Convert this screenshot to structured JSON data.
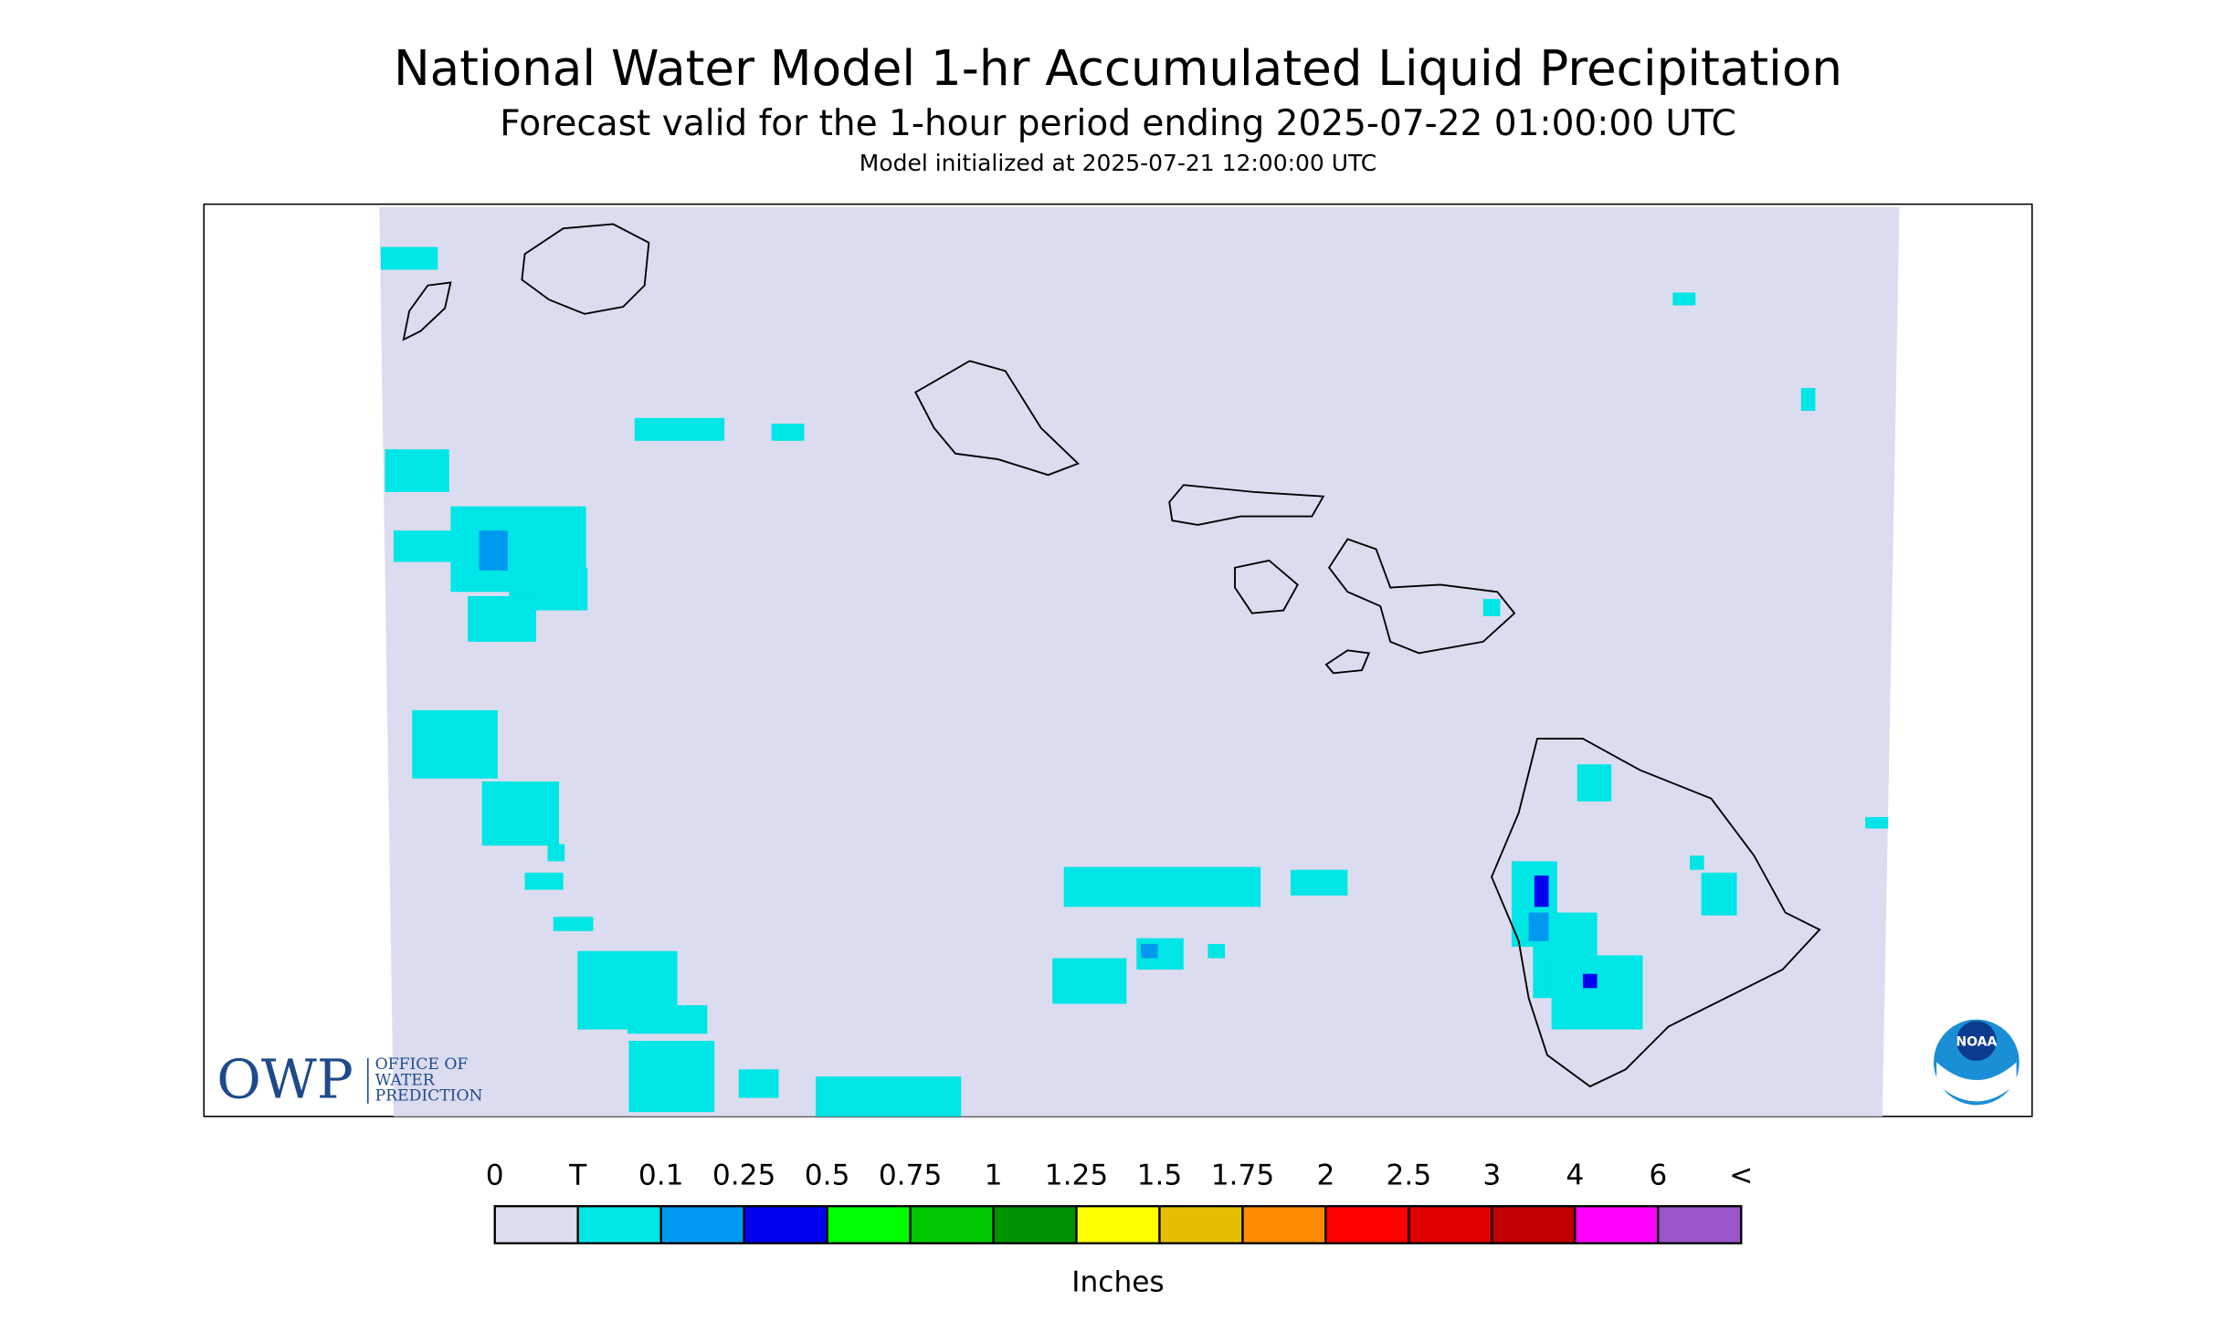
{
  "header": {
    "title": "National Water Model 1-hr Accumulated Liquid Precipitation",
    "subtitle": "Forecast valid for the 1-hour period ending 2025-07-22 01:00:00 UTC",
    "init": "Model initialized at 2025-07-21 12:00:00 UTC"
  },
  "logos": {
    "owp": "OWP",
    "owp_lines": [
      "OFFICE OF",
      "WATER",
      "PREDICTION"
    ],
    "noaa": "NOAA"
  },
  "legend": {
    "labels": [
      "0",
      "T",
      "0.1",
      "0.25",
      "0.5",
      "0.75",
      "1",
      "1.25",
      "1.5",
      "1.75",
      "2",
      "2.5",
      "3",
      "4",
      "6",
      "<"
    ],
    "colors": [
      "#dcdcf0",
      "#00e5e5",
      "#0099f0",
      "#0000f0",
      "#00ff00",
      "#00c800",
      "#009100",
      "#ffff00",
      "#e5be00",
      "#ff8c00",
      "#ff0000",
      "#e10000",
      "#c00000",
      "#ff00ff",
      "#9955c9"
    ],
    "unit": "Inches"
  }
}
